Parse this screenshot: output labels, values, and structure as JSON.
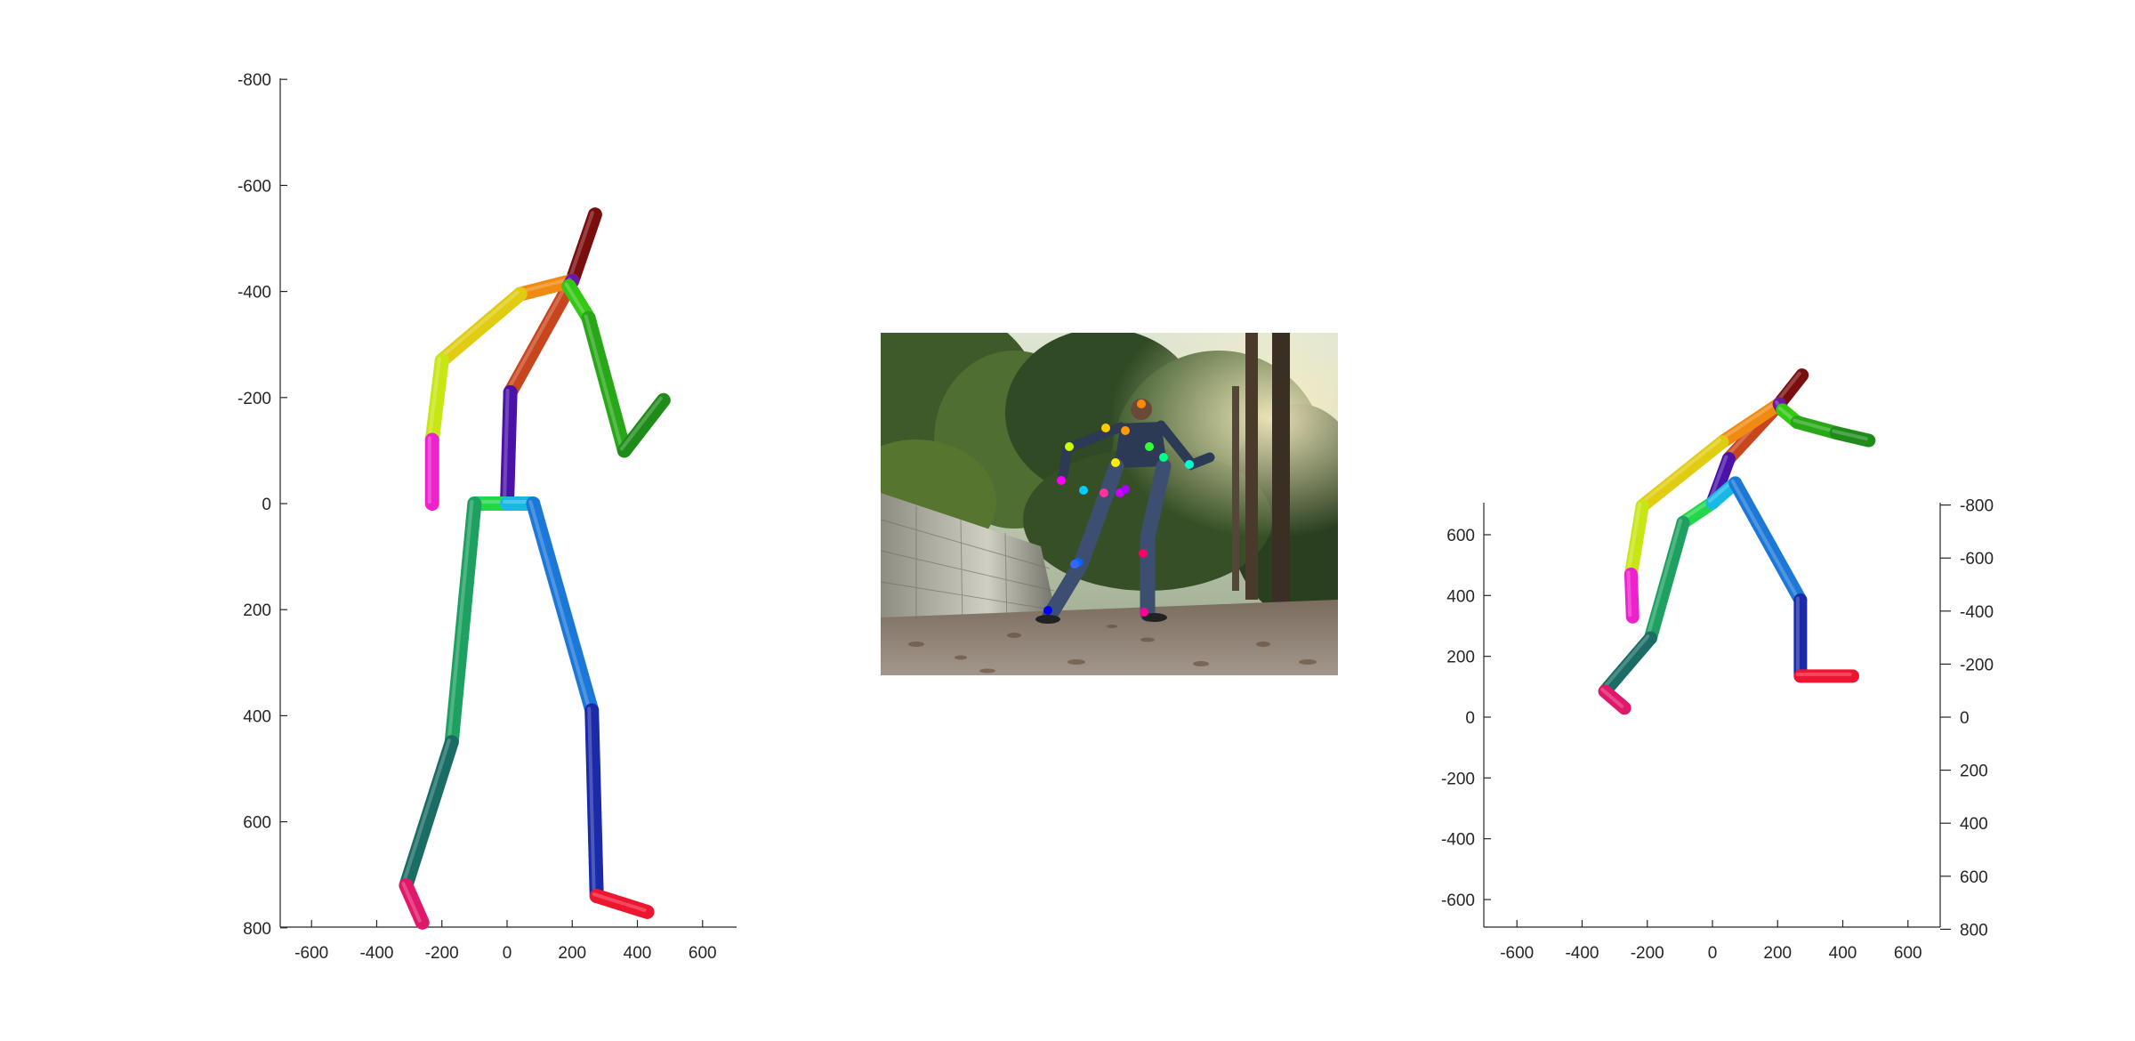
{
  "chart_data": [
    {
      "type": "line",
      "view": "front",
      "xticks": [
        -600,
        -400,
        -200,
        0,
        200,
        400,
        600
      ],
      "yticks": [
        -800,
        -600,
        -400,
        -200,
        0,
        200,
        400,
        600,
        800
      ],
      "xlim": [
        -700,
        700
      ],
      "ylim": [
        -800,
        800
      ],
      "y_direction": "reversed",
      "grid": false,
      "joints": {
        "head": [
          270,
          -545
        ],
        "neck": [
          200,
          -420
        ],
        "torso": [
          10,
          -210
        ],
        "pelvis": [
          0,
          0
        ],
        "l_shoulder": [
          40,
          -395
        ],
        "l_elbow": [
          -200,
          -270
        ],
        "l_wrist": [
          -230,
          -120
        ],
        "l_hand": [
          -230,
          0
        ],
        "r_shoulder": [
          190,
          -410
        ],
        "r_elbow": [
          250,
          -350
        ],
        "r_wrist": [
          360,
          -100
        ],
        "r_hand": [
          480,
          -195
        ],
        "l_hip": [
          -100,
          0
        ],
        "l_knee": [
          -170,
          450
        ],
        "l_ankle": [
          -310,
          720
        ],
        "l_foot": [
          -260,
          790
        ],
        "r_hip": [
          80,
          0
        ],
        "r_knee": [
          260,
          390
        ],
        "r_ankle": [
          275,
          740
        ],
        "r_foot": [
          430,
          770
        ]
      },
      "bones": [
        {
          "from": "neck",
          "to": "head",
          "color": "#7a0e0e"
        },
        {
          "from": "torso",
          "to": "neck",
          "color": "#c8461e"
        },
        {
          "from": "pelvis",
          "to": "torso",
          "color": "#4a12a8"
        },
        {
          "from": "neck",
          "to": "l_shoulder",
          "color": "#f08a10"
        },
        {
          "from": "l_shoulder",
          "to": "l_elbow",
          "color": "#e0cc10"
        },
        {
          "from": "l_elbow",
          "to": "l_wrist",
          "color": "#c8e614"
        },
        {
          "from": "l_wrist",
          "to": "l_hand",
          "color": "#ee22cc"
        },
        {
          "from": "neck",
          "to": "r_shoulder",
          "color": "#6a18a6"
        },
        {
          "from": "r_shoulder",
          "to": "r_elbow",
          "color": "#32c814"
        },
        {
          "from": "r_elbow",
          "to": "r_wrist",
          "color": "#28a818"
        },
        {
          "from": "r_wrist",
          "to": "r_hand",
          "color": "#1f8c1a"
        },
        {
          "from": "pelvis",
          "to": "l_hip",
          "color": "#22d84a"
        },
        {
          "from": "l_hip",
          "to": "l_knee",
          "color": "#1ea060"
        },
        {
          "from": "l_knee",
          "to": "l_ankle",
          "color": "#1a6c64"
        },
        {
          "from": "l_ankle",
          "to": "l_foot",
          "color": "#e0186a"
        },
        {
          "from": "pelvis",
          "to": "r_hip",
          "color": "#18b8e6"
        },
        {
          "from": "r_hip",
          "to": "r_knee",
          "color": "#1c78d8"
        },
        {
          "from": "r_knee",
          "to": "r_ankle",
          "color": "#1a2aa8"
        },
        {
          "from": "r_ankle",
          "to": "r_foot",
          "color": "#ee1530"
        }
      ]
    },
    {
      "type": "line",
      "view": "oblique",
      "xticks": [
        -600,
        -400,
        -200,
        0,
        200,
        400,
        600
      ],
      "yticks_left": [
        -600,
        -400,
        -200,
        0,
        200,
        400,
        600
      ],
      "yticks_right": [
        -800,
        -600,
        -400,
        -200,
        0,
        200,
        400,
        600,
        800
      ],
      "xlim": [
        -700,
        700
      ],
      "ylim_left": [
        -700,
        700
      ],
      "grid": false,
      "joints": {
        "head": [
          275,
          1125
        ],
        "neck": [
          205,
          1030
        ],
        "torso": [
          50,
          850
        ],
        "pelvis": [
          0,
          705
        ],
        "l_shoulder": [
          30,
          905
        ],
        "l_elbow": [
          -215,
          695
        ],
        "l_wrist": [
          -250,
          470
        ],
        "l_hand": [
          -245,
          330
        ],
        "r_shoulder": [
          215,
          1010
        ],
        "r_elbow": [
          260,
          970
        ],
        "r_wrist": [
          380,
          935
        ],
        "r_hand": [
          480,
          910
        ],
        "l_hip": [
          -90,
          640
        ],
        "l_knee": [
          -190,
          260
        ],
        "l_ankle": [
          -330,
          85
        ],
        "l_foot": [
          -270,
          30
        ],
        "r_hip": [
          70,
          770
        ],
        "r_knee": [
          270,
          385
        ],
        "r_ankle": [
          270,
          135
        ],
        "r_foot": [
          430,
          135
        ]
      },
      "bones": [
        {
          "from": "neck",
          "to": "head",
          "color": "#7a0e0e"
        },
        {
          "from": "torso",
          "to": "neck",
          "color": "#c8461e"
        },
        {
          "from": "pelvis",
          "to": "torso",
          "color": "#4a12a8"
        },
        {
          "from": "neck",
          "to": "l_shoulder",
          "color": "#f08a10"
        },
        {
          "from": "l_shoulder",
          "to": "l_elbow",
          "color": "#e0cc10"
        },
        {
          "from": "l_elbow",
          "to": "l_wrist",
          "color": "#c8e614"
        },
        {
          "from": "l_wrist",
          "to": "l_hand",
          "color": "#ee22cc"
        },
        {
          "from": "neck",
          "to": "r_shoulder",
          "color": "#6a18a6"
        },
        {
          "from": "r_shoulder",
          "to": "r_elbow",
          "color": "#32c814"
        },
        {
          "from": "r_elbow",
          "to": "r_wrist",
          "color": "#28a818"
        },
        {
          "from": "r_wrist",
          "to": "r_hand",
          "color": "#1f8c1a"
        },
        {
          "from": "pelvis",
          "to": "l_hip",
          "color": "#22d84a"
        },
        {
          "from": "l_hip",
          "to": "l_knee",
          "color": "#1ea060"
        },
        {
          "from": "l_knee",
          "to": "l_ankle",
          "color": "#1a6c64"
        },
        {
          "from": "l_ankle",
          "to": "l_foot",
          "color": "#e0186a"
        },
        {
          "from": "pelvis",
          "to": "r_hip",
          "color": "#18b8e6"
        },
        {
          "from": "r_hip",
          "to": "r_knee",
          "color": "#1c78d8"
        },
        {
          "from": "r_knee",
          "to": "r_ankle",
          "color": "#1a2aa8"
        },
        {
          "from": "r_ankle",
          "to": "r_foot",
          "color": "#ee1530"
        }
      ]
    }
  ],
  "photo": {
    "keypoints": [
      {
        "color": "#ff8800"
      },
      {
        "color": "#ffcc00"
      },
      {
        "color": "#ff9900"
      },
      {
        "color": "#ccff00"
      },
      {
        "color": "#33ff33"
      },
      {
        "color": "#00ff88"
      },
      {
        "color": "#00ffcc"
      },
      {
        "color": "#00ccff"
      },
      {
        "color": "#ff3399"
      },
      {
        "color": "#cc00ff"
      },
      {
        "color": "#ff00ff"
      },
      {
        "color": "#0066ff"
      },
      {
        "color": "#0000ff"
      },
      {
        "color": "#ff0066"
      },
      {
        "color": "#ff0099"
      },
      {
        "color": "#3366ff"
      },
      {
        "color": "#aa00ff"
      },
      {
        "color": "#ffee00"
      }
    ]
  }
}
